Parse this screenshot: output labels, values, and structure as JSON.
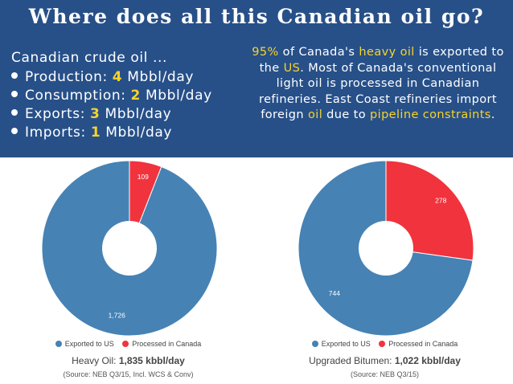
{
  "header": {
    "title": "Where does all this Canadian oil go?",
    "facts_lead": "Canadian crude oil ...",
    "facts": [
      {
        "label": "Production: ",
        "value": "4",
        "unit": " Mbbl/day"
      },
      {
        "label": "Consumption: ",
        "value": "2",
        "unit": " Mbbl/day"
      },
      {
        "label": "Exports: ",
        "value": "3",
        "unit": " Mbbl/day"
      },
      {
        "label": "Imports: ",
        "value": "1",
        "unit": " Mbbl/day"
      }
    ],
    "note": {
      "p1": "95%",
      "p2": " of Canada's ",
      "p3": "heavy oil",
      "p4": " is exported to the ",
      "p5": "US",
      "p6": ". Most of Canada's conventional light oil is processed in Canadian refineries. East Coast refineries import foreign ",
      "p7": "oil",
      "p8": " due to ",
      "p9": "pipeline constraints",
      "p10": "."
    }
  },
  "colors": {
    "header_bg": "#275089",
    "highlight": "#f7d32b",
    "exported": "#4682b4",
    "processed": "#f0333d"
  },
  "legend": {
    "exported": "Exported to US",
    "processed": "Processed in Canada"
  },
  "chart_data": [
    {
      "type": "pie",
      "donut": true,
      "categories": [
        "Exported to US",
        "Processed in Canada"
      ],
      "values": [
        1726,
        109
      ],
      "value_labels": [
        "1,726",
        "109"
      ],
      "caption_prefix": "Heavy Oil: ",
      "caption_value": "1,835 kbbl/day",
      "source": "(Source: NEB Q3/15, Incl. WCS & Conv)"
    },
    {
      "type": "pie",
      "donut": true,
      "categories": [
        "Exported to US",
        "Processed in Canada"
      ],
      "values": [
        744,
        278
      ],
      "value_labels": [
        "744",
        "278"
      ],
      "caption_prefix": "Upgraded Bitumen: ",
      "caption_value": "1,022 kbbl/day",
      "source": "(Source: NEB Q3/15)"
    }
  ]
}
